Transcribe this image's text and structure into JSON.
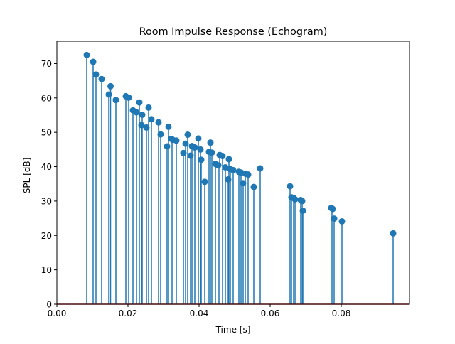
{
  "chart_data": {
    "type": "stem",
    "title": "Room Impulse Response (Echogram)",
    "xlabel": "Time [s]",
    "ylabel": "SPL [dB]",
    "xlim": [
      0.0,
      0.0992
    ],
    "ylim": [
      0,
      76.5
    ],
    "xticks": [
      0.0,
      0.02,
      0.04,
      0.06,
      0.08
    ],
    "xtick_labels": [
      "0.00",
      "0.02",
      "0.04",
      "0.06",
      "0.08"
    ],
    "yticks": [
      0,
      10,
      20,
      30,
      40,
      50,
      60,
      70
    ],
    "ytick_labels": [
      "0",
      "10",
      "20",
      "30",
      "40",
      "50",
      "60",
      "70"
    ],
    "grid": false,
    "baseline": 0,
    "colors": {
      "stem": "#1f77b4",
      "marker": "#1f77b4",
      "baseline": "#d62728"
    },
    "points": [
      [
        0.0084,
        72.5
      ],
      [
        0.0102,
        70.5
      ],
      [
        0.011,
        66.8
      ],
      [
        0.0126,
        65.5
      ],
      [
        0.0146,
        61.0
      ],
      [
        0.0151,
        63.4
      ],
      [
        0.0166,
        59.4
      ],
      [
        0.0194,
        60.5
      ],
      [
        0.0202,
        60.1
      ],
      [
        0.0214,
        56.4
      ],
      [
        0.0224,
        55.8
      ],
      [
        0.0232,
        58.7
      ],
      [
        0.0238,
        52.1
      ],
      [
        0.024,
        55.1
      ],
      [
        0.0252,
        51.4
      ],
      [
        0.0258,
        57.2
      ],
      [
        0.0266,
        53.8
      ],
      [
        0.0286,
        52.9
      ],
      [
        0.0292,
        49.4
      ],
      [
        0.031,
        45.9
      ],
      [
        0.0314,
        51.6
      ],
      [
        0.0322,
        48.1
      ],
      [
        0.0326,
        47.8
      ],
      [
        0.0336,
        47.6
      ],
      [
        0.0356,
        44.0
      ],
      [
        0.0362,
        46.7
      ],
      [
        0.0368,
        49.3
      ],
      [
        0.0376,
        43.2
      ],
      [
        0.038,
        46.0
      ],
      [
        0.0388,
        45.6
      ],
      [
        0.0398,
        48.2
      ],
      [
        0.0404,
        45.0
      ],
      [
        0.0406,
        42.0
      ],
      [
        0.0416,
        35.6
      ],
      [
        0.0428,
        44.3
      ],
      [
        0.0432,
        47.0
      ],
      [
        0.0436,
        44.1
      ],
      [
        0.0446,
        40.8
      ],
      [
        0.0454,
        40.4
      ],
      [
        0.0458,
        43.4
      ],
      [
        0.0466,
        43.1
      ],
      [
        0.0474,
        39.8
      ],
      [
        0.0482,
        36.3
      ],
      [
        0.0484,
        42.2
      ],
      [
        0.0488,
        39.3
      ],
      [
        0.0496,
        39.0
      ],
      [
        0.0512,
        38.5
      ],
      [
        0.0518,
        38.3
      ],
      [
        0.0524,
        35.2
      ],
      [
        0.053,
        38.0
      ],
      [
        0.0538,
        37.7
      ],
      [
        0.0554,
        34.1
      ],
      [
        0.0572,
        39.5
      ],
      [
        0.0656,
        34.3
      ],
      [
        0.066,
        31.1
      ],
      [
        0.0666,
        30.9
      ],
      [
        0.067,
        30.5
      ],
      [
        0.0686,
        30.3
      ],
      [
        0.069,
        30.0
      ],
      [
        0.0692,
        27.2
      ],
      [
        0.0772,
        28.0
      ],
      [
        0.0776,
        27.7
      ],
      [
        0.078,
        24.9
      ],
      [
        0.0802,
        24.1
      ],
      [
        0.0946,
        20.6
      ]
    ]
  }
}
